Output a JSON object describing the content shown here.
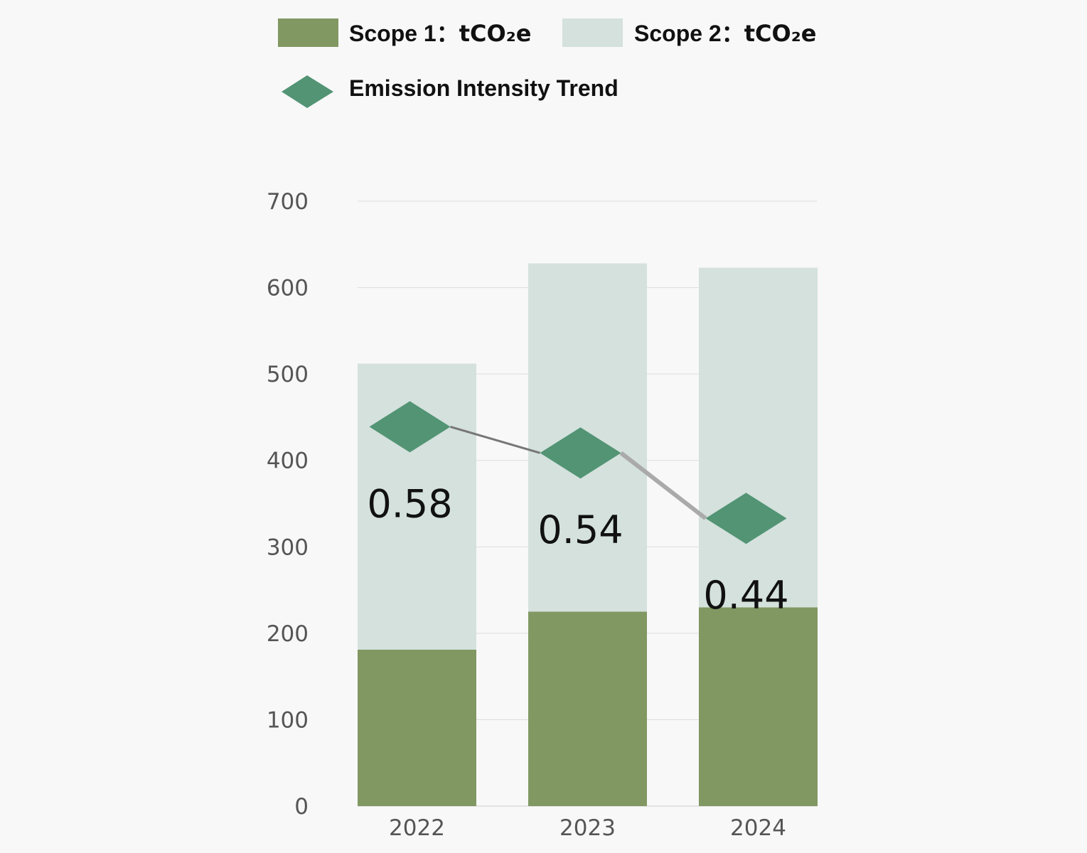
{
  "chart_data": {
    "type": "bar",
    "stacked": true,
    "categories": [
      "2022",
      "2023",
      "2024"
    ],
    "series": [
      {
        "name": "Scope 1",
        "unit_label": "：tCO₂e",
        "values": [
          181,
          225,
          230
        ],
        "color": "#819862"
      },
      {
        "name": "Scope 2",
        "unit_label": "：tCO₂e",
        "values": [
          331,
          403,
          393
        ],
        "color": "#d4e1dd"
      }
    ],
    "line_series": {
      "name": "Emission Intensity Trend",
      "values": [
        0.58,
        0.54,
        0.44
      ],
      "data_labels": [
        "0.58",
        "0.54",
        "0.44"
      ],
      "marker": "diamond",
      "color": "#529474",
      "line_color": "#777777"
    },
    "ylim": [
      0,
      700
    ],
    "yticks": [
      "0",
      "100",
      "200",
      "300",
      "400",
      "500",
      "600",
      "700"
    ],
    "grid": true,
    "legend_position": "top"
  }
}
